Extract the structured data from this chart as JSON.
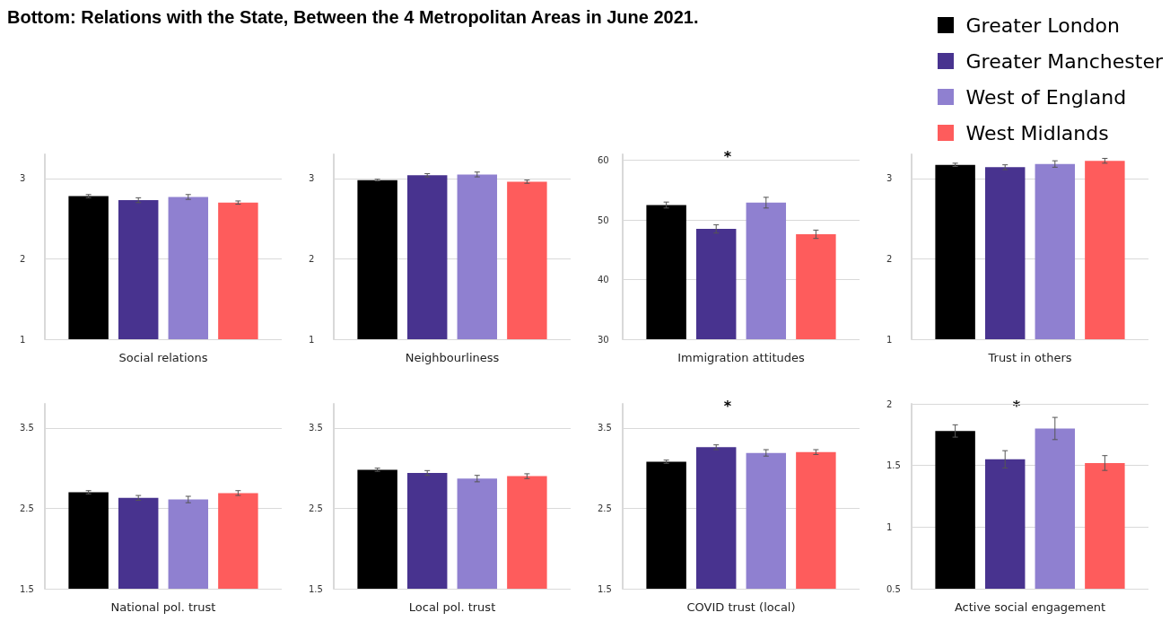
{
  "chart_data": [
    {
      "type": "bar",
      "title": "Bottom: Relations with the State, Between the 4 Metropolitan Areas in June 2021.",
      "categories": [
        "Social relations"
      ],
      "legend": "top right",
      "grid": "y",
      "ylim": [
        1,
        3.3
      ],
      "yticks": [
        1,
        2,
        3
      ],
      "series": [
        {
          "name": "Greater London",
          "color": "#000000",
          "values": [
            2.78
          ],
          "errors": [
            0.02
          ]
        },
        {
          "name": "Greater Manchester",
          "color": "#48338f",
          "values": [
            2.73
          ],
          "errors": [
            0.03
          ]
        },
        {
          "name": "West of England",
          "color": "#8f80d0",
          "values": [
            2.77
          ],
          "errors": [
            0.03
          ]
        },
        {
          "name": "West Midlands",
          "color": "#fe5c5c",
          "values": [
            2.7
          ],
          "errors": [
            0.02
          ]
        }
      ]
    },
    {
      "type": "bar",
      "categories": [
        "Neighbourliness"
      ],
      "grid": "y",
      "ylim": [
        1,
        3.3
      ],
      "yticks": [
        1,
        2,
        3
      ],
      "series": [
        {
          "color": "#000000",
          "values": [
            2.98
          ],
          "errors": [
            0.01
          ]
        },
        {
          "color": "#48338f",
          "values": [
            3.04
          ],
          "errors": [
            0.02
          ]
        },
        {
          "color": "#8f80d0",
          "values": [
            3.05
          ],
          "errors": [
            0.03
          ]
        },
        {
          "color": "#fe5c5c",
          "values": [
            2.96
          ],
          "errors": [
            0.02
          ]
        }
      ]
    },
    {
      "type": "bar",
      "categories": [
        "Immigration attitudes"
      ],
      "grid": "y",
      "ylim": [
        30,
        61
      ],
      "yticks": [
        30,
        40,
        50,
        60
      ],
      "annotations": [
        "*"
      ],
      "series": [
        {
          "color": "#000000",
          "values": [
            52.5
          ],
          "errors": [
            0.5
          ]
        },
        {
          "color": "#48338f",
          "values": [
            48.5
          ],
          "errors": [
            0.7
          ]
        },
        {
          "color": "#8f80d0",
          "values": [
            52.9
          ],
          "errors": [
            0.9
          ]
        },
        {
          "color": "#fe5c5c",
          "values": [
            47.6
          ],
          "errors": [
            0.7
          ]
        }
      ]
    },
    {
      "type": "bar",
      "categories": [
        "Trust in others"
      ],
      "grid": "y",
      "ylim": [
        1,
        3.3
      ],
      "yticks": [
        1,
        2,
        3
      ],
      "series": [
        {
          "color": "#000000",
          "values": [
            3.17
          ],
          "errors": [
            0.02
          ]
        },
        {
          "color": "#48338f",
          "values": [
            3.14
          ],
          "errors": [
            0.03
          ]
        },
        {
          "color": "#8f80d0",
          "values": [
            3.18
          ],
          "errors": [
            0.04
          ]
        },
        {
          "color": "#fe5c5c",
          "values": [
            3.22
          ],
          "errors": [
            0.03
          ]
        }
      ]
    },
    {
      "type": "bar",
      "categories": [
        "National pol. trust"
      ],
      "grid": "y",
      "ylim": [
        1.5,
        3.8
      ],
      "yticks": [
        1.5,
        2.5,
        3.5
      ],
      "series": [
        {
          "color": "#000000",
          "values": [
            2.7
          ],
          "errors": [
            0.02
          ]
        },
        {
          "color": "#48338f",
          "values": [
            2.63
          ],
          "errors": [
            0.03
          ]
        },
        {
          "color": "#8f80d0",
          "values": [
            2.61
          ],
          "errors": [
            0.04
          ]
        },
        {
          "color": "#fe5c5c",
          "values": [
            2.69
          ],
          "errors": [
            0.03
          ]
        }
      ]
    },
    {
      "type": "bar",
      "categories": [
        "Local pol. trust"
      ],
      "grid": "y",
      "ylim": [
        1.5,
        3.8
      ],
      "yticks": [
        1.5,
        2.5,
        3.5
      ],
      "series": [
        {
          "color": "#000000",
          "values": [
            2.98
          ],
          "errors": [
            0.02
          ]
        },
        {
          "color": "#48338f",
          "values": [
            2.94
          ],
          "errors": [
            0.03
          ]
        },
        {
          "color": "#8f80d0",
          "values": [
            2.87
          ],
          "errors": [
            0.04
          ]
        },
        {
          "color": "#fe5c5c",
          "values": [
            2.9
          ],
          "errors": [
            0.03
          ]
        }
      ]
    },
    {
      "type": "bar",
      "categories": [
        "COVID trust (local)"
      ],
      "grid": "y",
      "ylim": [
        1.5,
        3.8
      ],
      "yticks": [
        1.5,
        2.5,
        3.5
      ],
      "annotations": [
        "*"
      ],
      "series": [
        {
          "color": "#000000",
          "values": [
            3.08
          ],
          "errors": [
            0.02
          ]
        },
        {
          "color": "#48338f",
          "values": [
            3.26
          ],
          "errors": [
            0.03
          ]
        },
        {
          "color": "#8f80d0",
          "values": [
            3.19
          ],
          "errors": [
            0.04
          ]
        },
        {
          "color": "#fe5c5c",
          "values": [
            3.2
          ],
          "errors": [
            0.03
          ]
        }
      ]
    },
    {
      "type": "bar",
      "categories": [
        "Active social engagement"
      ],
      "grid": "y",
      "ylim": [
        0.5,
        2
      ],
      "yticks": [
        0.5,
        1,
        1.5,
        2
      ],
      "annotations": [
        "*"
      ],
      "series": [
        {
          "color": "#000000",
          "values": [
            1.78
          ],
          "errors": [
            0.05
          ]
        },
        {
          "color": "#48338f",
          "values": [
            1.55
          ],
          "errors": [
            0.07
          ]
        },
        {
          "color": "#8f80d0",
          "values": [
            1.8
          ],
          "errors": [
            0.09
          ]
        },
        {
          "color": "#fe5c5c",
          "values": [
            1.52
          ],
          "errors": [
            0.06
          ]
        }
      ]
    }
  ]
}
